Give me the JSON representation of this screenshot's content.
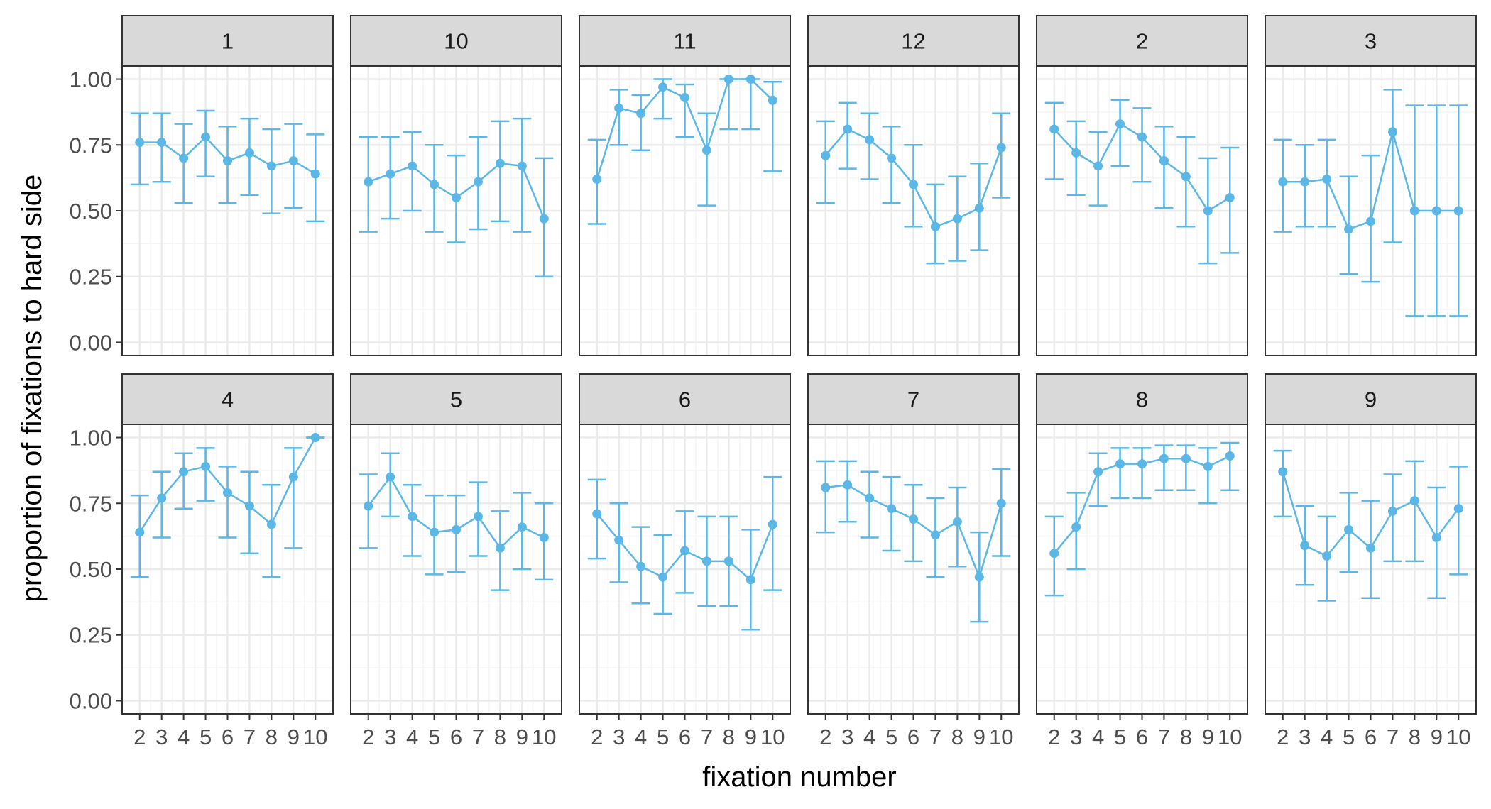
{
  "chart_data": {
    "type": "line",
    "facet_type": "small-multiples",
    "xlabel": "fixation number",
    "ylabel": "proportion of fixations to hard side",
    "x_ticks": [
      "2",
      "3",
      "4",
      "5",
      "6",
      "7",
      "8",
      "9",
      "10"
    ],
    "x_range": [
      1.2,
      10.8
    ],
    "y_ticks": [
      "0.00",
      "0.25",
      "0.50",
      "0.75",
      "1.00"
    ],
    "y_tick_values": [
      0,
      0.25,
      0.5,
      0.75,
      1.0
    ],
    "ylim": [
      -0.05,
      1.05
    ],
    "grid": true,
    "colors": {
      "series": "#5BB7E5",
      "strip_bg": "#D9D9D9",
      "panel_border": "#333333",
      "grid_major": "#EBEBEB",
      "grid_minor": "#F5F5F5"
    },
    "panels": [
      {
        "label": "1",
        "x": [
          2,
          3,
          4,
          5,
          6,
          7,
          8,
          9,
          10
        ],
        "y": [
          0.76,
          0.76,
          0.7,
          0.78,
          0.69,
          0.72,
          0.67,
          0.69,
          0.64
        ],
        "lower": [
          0.6,
          0.61,
          0.53,
          0.63,
          0.53,
          0.56,
          0.49,
          0.51,
          0.46
        ],
        "upper": [
          0.87,
          0.87,
          0.83,
          0.88,
          0.82,
          0.85,
          0.81,
          0.83,
          0.79
        ]
      },
      {
        "label": "10",
        "x": [
          2,
          3,
          4,
          5,
          6,
          7,
          8,
          9,
          10
        ],
        "y": [
          0.61,
          0.64,
          0.67,
          0.6,
          0.55,
          0.61,
          0.68,
          0.67,
          0.47
        ],
        "lower": [
          0.42,
          0.47,
          0.5,
          0.42,
          0.38,
          0.43,
          0.46,
          0.42,
          0.25
        ],
        "upper": [
          0.78,
          0.78,
          0.8,
          0.75,
          0.71,
          0.78,
          0.84,
          0.85,
          0.7
        ]
      },
      {
        "label": "11",
        "x": [
          2,
          3,
          4,
          5,
          6,
          7,
          8,
          9,
          10
        ],
        "y": [
          0.62,
          0.89,
          0.87,
          0.97,
          0.93,
          0.73,
          1.0,
          1.0,
          0.92
        ],
        "lower": [
          0.45,
          0.75,
          0.73,
          0.85,
          0.78,
          0.52,
          0.81,
          0.81,
          0.65
        ],
        "upper": [
          0.77,
          0.96,
          0.94,
          1.0,
          0.98,
          0.87,
          1.0,
          1.0,
          0.99
        ]
      },
      {
        "label": "12",
        "x": [
          2,
          3,
          4,
          5,
          6,
          7,
          8,
          9,
          10
        ],
        "y": [
          0.71,
          0.81,
          0.77,
          0.7,
          0.6,
          0.44,
          0.47,
          0.51,
          0.74
        ],
        "lower": [
          0.53,
          0.66,
          0.62,
          0.53,
          0.44,
          0.3,
          0.31,
          0.35,
          0.55
        ],
        "upper": [
          0.84,
          0.91,
          0.87,
          0.82,
          0.75,
          0.6,
          0.63,
          0.68,
          0.87
        ]
      },
      {
        "label": "2",
        "x": [
          2,
          3,
          4,
          5,
          6,
          7,
          8,
          9,
          10
        ],
        "y": [
          0.81,
          0.72,
          0.67,
          0.83,
          0.78,
          0.69,
          0.63,
          0.5,
          0.55
        ],
        "lower": [
          0.62,
          0.56,
          0.52,
          0.67,
          0.61,
          0.51,
          0.44,
          0.3,
          0.34
        ],
        "upper": [
          0.91,
          0.84,
          0.8,
          0.92,
          0.89,
          0.82,
          0.78,
          0.7,
          0.74
        ]
      },
      {
        "label": "3",
        "x": [
          2,
          3,
          4,
          5,
          6,
          7,
          8,
          9,
          10
        ],
        "y": [
          0.61,
          0.61,
          0.62,
          0.43,
          0.46,
          0.8,
          0.5,
          0.5,
          0.5
        ],
        "lower": [
          0.42,
          0.44,
          0.44,
          0.26,
          0.23,
          0.38,
          0.1,
          0.1,
          0.1
        ],
        "upper": [
          0.77,
          0.75,
          0.77,
          0.63,
          0.71,
          0.96,
          0.9,
          0.9,
          0.9
        ]
      },
      {
        "label": "4",
        "x": [
          2,
          3,
          4,
          5,
          6,
          7,
          8,
          9,
          10
        ],
        "y": [
          0.64,
          0.77,
          0.87,
          0.89,
          0.79,
          0.74,
          0.67,
          0.85,
          1.0
        ],
        "lower": [
          0.47,
          0.62,
          0.73,
          0.76,
          0.62,
          0.56,
          0.47,
          0.58,
          1.0
        ],
        "upper": [
          0.78,
          0.87,
          0.94,
          0.96,
          0.89,
          0.87,
          0.82,
          0.96,
          1.0
        ]
      },
      {
        "label": "5",
        "x": [
          2,
          3,
          4,
          5,
          6,
          7,
          8,
          9,
          10
        ],
        "y": [
          0.74,
          0.85,
          0.7,
          0.64,
          0.65,
          0.7,
          0.58,
          0.66,
          0.62
        ],
        "lower": [
          0.58,
          0.7,
          0.55,
          0.48,
          0.49,
          0.55,
          0.42,
          0.5,
          0.46
        ],
        "upper": [
          0.86,
          0.94,
          0.82,
          0.78,
          0.78,
          0.83,
          0.72,
          0.79,
          0.75
        ]
      },
      {
        "label": "6",
        "x": [
          2,
          3,
          4,
          5,
          6,
          7,
          8,
          9,
          10
        ],
        "y": [
          0.71,
          0.61,
          0.51,
          0.47,
          0.57,
          0.53,
          0.53,
          0.46,
          0.67
        ],
        "lower": [
          0.54,
          0.45,
          0.37,
          0.33,
          0.41,
          0.36,
          0.36,
          0.27,
          0.42
        ],
        "upper": [
          0.84,
          0.75,
          0.66,
          0.63,
          0.72,
          0.7,
          0.7,
          0.65,
          0.85
        ]
      },
      {
        "label": "7",
        "x": [
          2,
          3,
          4,
          5,
          6,
          7,
          8,
          9,
          10
        ],
        "y": [
          0.81,
          0.82,
          0.77,
          0.73,
          0.69,
          0.63,
          0.68,
          0.47,
          0.75
        ],
        "lower": [
          0.64,
          0.68,
          0.62,
          0.57,
          0.53,
          0.47,
          0.51,
          0.3,
          0.55
        ],
        "upper": [
          0.91,
          0.91,
          0.87,
          0.85,
          0.82,
          0.77,
          0.81,
          0.64,
          0.88
        ]
      },
      {
        "label": "8",
        "x": [
          2,
          3,
          4,
          5,
          6,
          7,
          8,
          9,
          10
        ],
        "y": [
          0.56,
          0.66,
          0.87,
          0.9,
          0.9,
          0.92,
          0.92,
          0.89,
          0.93
        ],
        "lower": [
          0.4,
          0.5,
          0.74,
          0.77,
          0.77,
          0.8,
          0.8,
          0.75,
          0.8
        ],
        "upper": [
          0.7,
          0.79,
          0.94,
          0.96,
          0.96,
          0.97,
          0.97,
          0.96,
          0.98
        ]
      },
      {
        "label": "9",
        "x": [
          2,
          3,
          4,
          5,
          6,
          7,
          8,
          9,
          10
        ],
        "y": [
          0.87,
          0.59,
          0.55,
          0.65,
          0.58,
          0.72,
          0.76,
          0.62,
          0.73
        ],
        "lower": [
          0.7,
          0.44,
          0.38,
          0.49,
          0.39,
          0.53,
          0.53,
          0.39,
          0.48
        ],
        "upper": [
          0.95,
          0.74,
          0.7,
          0.79,
          0.76,
          0.86,
          0.91,
          0.81,
          0.89
        ]
      }
    ]
  }
}
